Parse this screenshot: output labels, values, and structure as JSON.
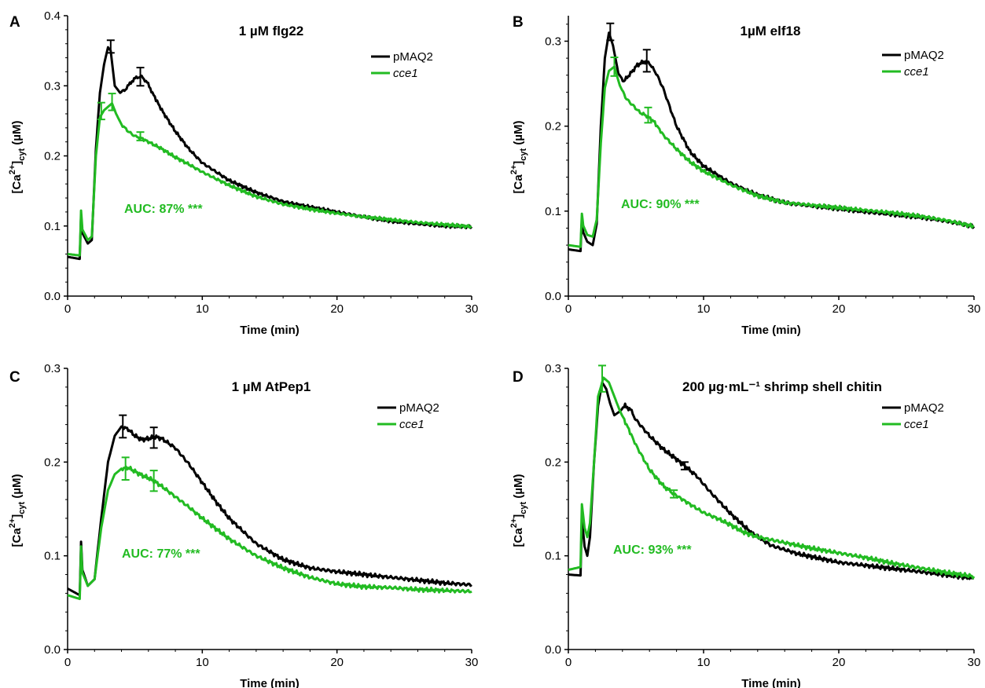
{
  "colors": {
    "pMAQ2": "#000000",
    "cce1": "#22bb22"
  },
  "chart_data": [
    {
      "panel": "A",
      "type": "line",
      "title": "1 µM  flg22",
      "xlabel": "Time (min)",
      "ylabel": "[Ca2+]cyt (µM)",
      "xlim": [
        0,
        30
      ],
      "ylim": [
        0,
        0.4
      ],
      "xticks": [
        "0",
        "10",
        "20",
        "30"
      ],
      "yticks": [
        "0.0",
        "0.1",
        "0.2",
        "0.3",
        "0.4"
      ],
      "legend_position": "top-right",
      "annotation": "AUC: 87% ***",
      "series": [
        {
          "name": "pMAQ2",
          "x": [
            0,
            0.9,
            1.0,
            1.1,
            1.5,
            1.8,
            2.1,
            2.4,
            2.7,
            3.0,
            3.2,
            3.5,
            3.9,
            4.3,
            4.7,
            5.1,
            5.5,
            5.9,
            6.3,
            7.0,
            8.0,
            9.0,
            10.0,
            12.0,
            14.0,
            16.0,
            18.0,
            20.0,
            22.0,
            24.0,
            26.0,
            28.0,
            30.0
          ],
          "y": [
            0.056,
            0.053,
            0.115,
            0.09,
            0.075,
            0.08,
            0.21,
            0.29,
            0.33,
            0.355,
            0.35,
            0.3,
            0.29,
            0.295,
            0.305,
            0.312,
            0.313,
            0.305,
            0.29,
            0.265,
            0.235,
            0.21,
            0.19,
            0.165,
            0.148,
            0.135,
            0.127,
            0.12,
            0.113,
            0.107,
            0.103,
            0.1,
            0.099
          ],
          "error_bars": [
            {
              "x": 3.2,
              "y": 0.356,
              "err": 0.009
            },
            {
              "x": 5.4,
              "y": 0.313,
              "err": 0.013
            }
          ]
        },
        {
          "name": "cce1",
          "x": [
            0,
            0.9,
            1.0,
            1.1,
            1.5,
            1.8,
            2.1,
            2.4,
            2.7,
            3.0,
            3.3,
            3.6,
            4.0,
            4.5,
            5.0,
            5.4,
            6.0,
            7.0,
            8.0,
            9.0,
            10.0,
            12.0,
            14.0,
            16.0,
            18.0,
            20.0,
            22.0,
            24.0,
            26.0,
            28.0,
            30.0
          ],
          "y": [
            0.06,
            0.058,
            0.122,
            0.095,
            0.08,
            0.085,
            0.2,
            0.255,
            0.265,
            0.27,
            0.275,
            0.26,
            0.245,
            0.235,
            0.228,
            0.226,
            0.22,
            0.21,
            0.198,
            0.188,
            0.177,
            0.158,
            0.142,
            0.131,
            0.124,
            0.118,
            0.113,
            0.109,
            0.105,
            0.102,
            0.099
          ],
          "error_bars": [
            {
              "x": 2.5,
              "y": 0.264,
              "err": 0.012
            },
            {
              "x": 3.3,
              "y": 0.277,
              "err": 0.012
            },
            {
              "x": 5.4,
              "y": 0.228,
              "err": 0.006
            }
          ]
        }
      ]
    },
    {
      "panel": "B",
      "type": "line",
      "title": "1µM  elf18",
      "xlabel": "Time (min)",
      "ylabel": "[Ca2+]cyt (µM)",
      "xlim": [
        0,
        30
      ],
      "ylim": [
        0,
        0.33
      ],
      "xticks": [
        "0",
        "10",
        "20",
        "30"
      ],
      "yticks": [
        "0.0",
        "0.1",
        "0.2",
        "0.3"
      ],
      "legend_position": "top-right",
      "annotation": "AUC: 90% ***",
      "series": [
        {
          "name": "pMAQ2",
          "x": [
            0,
            0.9,
            1.0,
            1.1,
            1.4,
            1.8,
            2.1,
            2.4,
            2.7,
            3.0,
            3.3,
            3.7,
            4.1,
            4.6,
            5.1,
            5.6,
            6.0,
            6.5,
            7.0,
            8.0,
            9.0,
            10.0,
            12.0,
            14.0,
            16.0,
            18.0,
            20.0,
            22.0,
            24.0,
            26.0,
            28.0,
            30.0
          ],
          "y": [
            0.055,
            0.053,
            0.09,
            0.075,
            0.064,
            0.06,
            0.085,
            0.2,
            0.28,
            0.31,
            0.295,
            0.262,
            0.253,
            0.262,
            0.272,
            0.276,
            0.274,
            0.262,
            0.245,
            0.2,
            0.17,
            0.153,
            0.133,
            0.119,
            0.11,
            0.106,
            0.103,
            0.099,
            0.096,
            0.093,
            0.088,
            0.082
          ],
          "error_bars": [
            {
              "x": 3.1,
              "y": 0.311,
              "err": 0.01
            },
            {
              "x": 5.8,
              "y": 0.277,
              "err": 0.013
            }
          ]
        },
        {
          "name": "cce1",
          "x": [
            0,
            0.9,
            1.0,
            1.1,
            1.4,
            1.8,
            2.1,
            2.4,
            2.7,
            3.0,
            3.4,
            3.8,
            4.3,
            4.8,
            5.3,
            5.8,
            6.3,
            7.0,
            8.0,
            9.0,
            10.0,
            12.0,
            14.0,
            16.0,
            18.0,
            20.0,
            22.0,
            24.0,
            26.0,
            28.0,
            30.0
          ],
          "y": [
            0.06,
            0.058,
            0.097,
            0.083,
            0.072,
            0.07,
            0.09,
            0.18,
            0.245,
            0.265,
            0.27,
            0.248,
            0.232,
            0.224,
            0.216,
            0.212,
            0.206,
            0.19,
            0.173,
            0.158,
            0.147,
            0.131,
            0.118,
            0.11,
            0.107,
            0.104,
            0.101,
            0.098,
            0.094,
            0.089,
            0.082
          ],
          "error_bars": [
            {
              "x": 3.4,
              "y": 0.27,
              "err": 0.011
            },
            {
              "x": 5.9,
              "y": 0.213,
              "err": 0.009
            }
          ]
        }
      ]
    },
    {
      "panel": "C",
      "type": "line",
      "title": "1 µM  AtPep1",
      "xlabel": "Time (min)",
      "ylabel": "[Ca2+]cyt (µM)",
      "xlim": [
        0,
        30
      ],
      "ylim": [
        0,
        0.3
      ],
      "xticks": [
        "0",
        "10",
        "20",
        "30"
      ],
      "yticks": [
        "0.0",
        "0.1",
        "0.2",
        "0.3"
      ],
      "legend_position": "top-right",
      "annotation": "AUC: 77% ***",
      "series": [
        {
          "name": "pMAQ2",
          "x": [
            0,
            0.9,
            1.0,
            1.1,
            1.5,
            2.0,
            2.5,
            3.0,
            3.5,
            4.0,
            4.5,
            5.0,
            5.5,
            6.0,
            6.5,
            7.0,
            8.0,
            9.0,
            10.0,
            11.0,
            12.0,
            14.0,
            16.0,
            18.0,
            20.0,
            22.0,
            24.0,
            26.0,
            28.0,
            30.0
          ],
          "y": [
            0.065,
            0.058,
            0.115,
            0.085,
            0.068,
            0.075,
            0.14,
            0.2,
            0.228,
            0.238,
            0.235,
            0.228,
            0.224,
            0.225,
            0.227,
            0.225,
            0.215,
            0.198,
            0.178,
            0.158,
            0.14,
            0.113,
            0.096,
            0.087,
            0.083,
            0.08,
            0.077,
            0.074,
            0.071,
            0.069
          ],
          "error_bars": [
            {
              "x": 4.1,
              "y": 0.238,
              "err": 0.012
            },
            {
              "x": 6.4,
              "y": 0.226,
              "err": 0.011
            }
          ]
        },
        {
          "name": "cce1",
          "x": [
            0,
            0.9,
            1.0,
            1.1,
            1.5,
            2.0,
            2.5,
            3.0,
            3.5,
            4.0,
            4.5,
            5.0,
            5.5,
            6.0,
            6.5,
            7.0,
            8.0,
            9.0,
            10.0,
            11.0,
            12.0,
            14.0,
            16.0,
            18.0,
            20.0,
            22.0,
            24.0,
            26.0,
            28.0,
            30.0
          ],
          "y": [
            0.058,
            0.054,
            0.11,
            0.082,
            0.068,
            0.075,
            0.13,
            0.17,
            0.187,
            0.193,
            0.194,
            0.19,
            0.186,
            0.183,
            0.179,
            0.174,
            0.163,
            0.152,
            0.14,
            0.129,
            0.118,
            0.1,
            0.087,
            0.077,
            0.07,
            0.067,
            0.066,
            0.064,
            0.063,
            0.062
          ],
          "error_bars": [
            {
              "x": 4.3,
              "y": 0.193,
              "err": 0.012
            },
            {
              "x": 6.4,
              "y": 0.18,
              "err": 0.011
            }
          ]
        }
      ]
    },
    {
      "panel": "D",
      "type": "line",
      "title": "200 µg·mL⁻¹ shrimp shell chitin",
      "xlabel": "Time (min)",
      "ylabel": "[Ca2+]cyt (µM)",
      "xlim": [
        0,
        30
      ],
      "ylim": [
        0,
        0.3
      ],
      "xticks": [
        "0",
        "10",
        "20",
        "30"
      ],
      "yticks": [
        "0.0",
        "0.1",
        "0.2",
        "0.3"
      ],
      "legend_position": "top-right",
      "annotation": "AUC: 93% ***",
      "series": [
        {
          "name": "pMAQ2",
          "x": [
            0,
            0.9,
            1.0,
            1.2,
            1.4,
            1.6,
            1.9,
            2.2,
            2.5,
            2.8,
            3.1,
            3.4,
            3.8,
            4.2,
            4.6,
            5.0,
            6.0,
            7.0,
            8.0,
            8.6,
            9.5,
            10.5,
            12.0,
            13.5,
            15.0,
            17.0,
            20.0,
            23.0,
            26.0,
            30.0
          ],
          "y": [
            0.08,
            0.079,
            0.14,
            0.11,
            0.1,
            0.12,
            0.2,
            0.26,
            0.285,
            0.278,
            0.262,
            0.25,
            0.254,
            0.26,
            0.256,
            0.245,
            0.228,
            0.214,
            0.203,
            0.196,
            0.185,
            0.168,
            0.145,
            0.125,
            0.111,
            0.102,
            0.093,
            0.088,
            0.083,
            0.076
          ],
          "error_bars": [
            {
              "x": 8.6,
              "y": 0.196,
              "err": 0.004
            }
          ]
        },
        {
          "name": "cce1",
          "x": [
            0,
            0.9,
            1.0,
            1.2,
            1.4,
            1.6,
            1.9,
            2.2,
            2.6,
            3.0,
            3.4,
            3.8,
            4.3,
            5.0,
            6.0,
            7.0,
            7.8,
            9.0,
            10.0,
            11.0,
            12.0,
            13.0,
            14.0,
            16.0,
            18.0,
            20.0,
            22.0,
            24.0,
            26.0,
            28.0,
            30.0
          ],
          "y": [
            0.085,
            0.088,
            0.155,
            0.13,
            0.12,
            0.135,
            0.2,
            0.27,
            0.29,
            0.285,
            0.27,
            0.255,
            0.24,
            0.218,
            0.192,
            0.175,
            0.166,
            0.155,
            0.146,
            0.14,
            0.133,
            0.125,
            0.12,
            0.114,
            0.108,
            0.103,
            0.098,
            0.092,
            0.087,
            0.082,
            0.078
          ],
          "error_bars": [
            {
              "x": 2.5,
              "y": 0.289,
              "err": 0.014
            },
            {
              "x": 7.8,
              "y": 0.166,
              "err": 0.004
            }
          ]
        }
      ]
    }
  ]
}
